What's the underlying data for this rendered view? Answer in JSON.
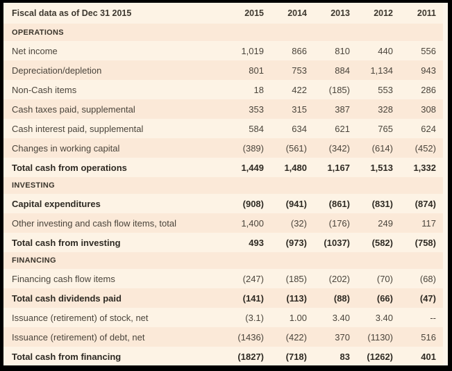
{
  "colors": {
    "row_light": "#fdf3e5",
    "row_dark": "#fbe9d8",
    "frame_border": "#000000",
    "text_regular": "#4a443b",
    "text_bold": "#2e2a23",
    "right_gutter": "#fdf5eb"
  },
  "header": {
    "title": "Fiscal data as of Dec 31 2015",
    "years": [
      "2015",
      "2014",
      "2013",
      "2012",
      "2011"
    ]
  },
  "sections": [
    {
      "name": "OPERATIONS",
      "rows": [
        {
          "label": "Net income",
          "values": [
            "1,019",
            "866",
            "810",
            "440",
            "556"
          ]
        },
        {
          "label": "Depreciation/depletion",
          "values": [
            "801",
            "753",
            "884",
            "1,134",
            "943"
          ]
        },
        {
          "label": "Non-Cash items",
          "values": [
            "18",
            "422",
            "(185)",
            "553",
            "286"
          ]
        },
        {
          "label": "Cash taxes paid, supplemental",
          "values": [
            "353",
            "315",
            "387",
            "328",
            "308"
          ]
        },
        {
          "label": "Cash interest paid, supplemental",
          "values": [
            "584",
            "634",
            "621",
            "765",
            "624"
          ]
        },
        {
          "label": "Changes in working capital",
          "values": [
            "(389)",
            "(561)",
            "(342)",
            "(614)",
            "(452)"
          ]
        },
        {
          "label": "Total cash from operations",
          "values": [
            "1,449",
            "1,480",
            "1,167",
            "1,513",
            "1,332"
          ],
          "bold": true
        }
      ]
    },
    {
      "name": "INVESTING",
      "rows": [
        {
          "label": "Capital expenditures",
          "values": [
            "(908)",
            "(941)",
            "(861)",
            "(831)",
            "(874)"
          ],
          "bold": true
        },
        {
          "label": "Other investing and cash flow items, total",
          "values": [
            "1,400",
            "(32)",
            "(176)",
            "249",
            "117"
          ]
        },
        {
          "label": "Total cash from investing",
          "values": [
            "493",
            "(973)",
            "(1037)",
            "(582)",
            "(758)"
          ],
          "bold": true
        }
      ]
    },
    {
      "name": "FINANCING",
      "rows": [
        {
          "label": "Financing cash flow items",
          "values": [
            "(247)",
            "(185)",
            "(202)",
            "(70)",
            "(68)"
          ]
        },
        {
          "label": "Total cash dividends paid",
          "values": [
            "(141)",
            "(113)",
            "(88)",
            "(66)",
            "(47)"
          ],
          "bold": true
        },
        {
          "label": "Issuance (retirement) of stock, net",
          "values": [
            "(3.1)",
            "1.00",
            "3.40",
            "3.40",
            "--"
          ]
        },
        {
          "label": "Issuance (retirement) of debt, net",
          "values": [
            "(1436)",
            "(422)",
            "370",
            "(1130)",
            "516"
          ]
        },
        {
          "label": "Total cash from financing",
          "values": [
            "(1827)",
            "(718)",
            "83",
            "(1262)",
            "401"
          ],
          "bold": true
        }
      ]
    }
  ]
}
